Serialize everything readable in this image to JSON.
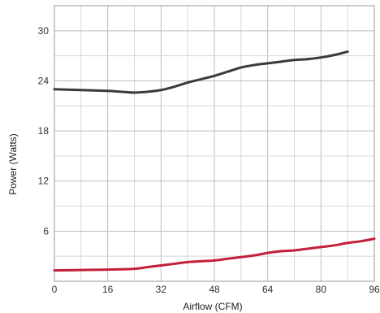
{
  "chart_data": {
    "type": "line",
    "title": "",
    "xlabel": "Airflow (CFM)",
    "ylabel": "Power (Watts)",
    "xlim": [
      0,
      96
    ],
    "ylim": [
      0,
      33
    ],
    "xticks": [
      0,
      16,
      32,
      48,
      64,
      80,
      96
    ],
    "yticks": [
      6,
      12,
      18,
      24,
      30
    ],
    "minor_ygrid": [
      3,
      9,
      15,
      21,
      27
    ],
    "minor_xgrid": [
      8,
      24,
      40,
      56,
      72,
      88
    ],
    "grid": true,
    "legend": "none",
    "series": [
      {
        "color": "#3a3a3a",
        "x": [
          0,
          8,
          16,
          20,
          24,
          28,
          32,
          36,
          40,
          44,
          48,
          52,
          56,
          60,
          64,
          68,
          72,
          76,
          80,
          84,
          88
        ],
        "y": [
          23.0,
          22.9,
          22.8,
          22.7,
          22.6,
          22.7,
          22.9,
          23.3,
          23.8,
          24.2,
          24.6,
          25.1,
          25.6,
          25.9,
          26.1,
          26.3,
          26.5,
          26.6,
          26.8,
          27.1,
          27.5
        ]
      },
      {
        "color": "#c41e3a",
        "x": [
          0,
          8,
          16,
          24,
          28,
          32,
          36,
          40,
          44,
          48,
          52,
          56,
          60,
          64,
          68,
          72,
          76,
          80,
          84,
          88,
          92,
          96
        ],
        "y": [
          1.3,
          1.35,
          1.4,
          1.5,
          1.7,
          1.9,
          2.1,
          2.3,
          2.4,
          2.5,
          2.7,
          2.9,
          3.1,
          3.4,
          3.6,
          3.7,
          3.9,
          4.1,
          4.3,
          4.6,
          4.8,
          5.1
        ]
      }
    ]
  }
}
